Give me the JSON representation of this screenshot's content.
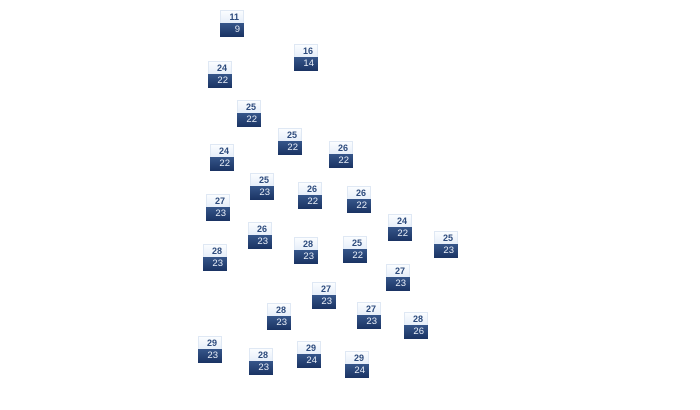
{
  "colors": {
    "marker_top": "#eef3fb",
    "marker_bottom": "#213b6c",
    "high_text": "#2c4a7c",
    "low_text": "#e8eef8"
  },
  "markers": [
    {
      "high": "11",
      "low": "9"
    },
    {
      "high": "16",
      "low": "14"
    },
    {
      "high": "24",
      "low": "22"
    },
    {
      "high": "25",
      "low": "22"
    },
    {
      "high": "25",
      "low": "22"
    },
    {
      "high": "26",
      "low": "22"
    },
    {
      "high": "24",
      "low": "22"
    },
    {
      "high": "25",
      "low": "23"
    },
    {
      "high": "26",
      "low": "22"
    },
    {
      "high": "26",
      "low": "22"
    },
    {
      "high": "27",
      "low": "23"
    },
    {
      "high": "24",
      "low": "22"
    },
    {
      "high": "26",
      "low": "23"
    },
    {
      "high": "28",
      "low": "23"
    },
    {
      "high": "25",
      "low": "22"
    },
    {
      "high": "25",
      "low": "23"
    },
    {
      "high": "28",
      "low": "23"
    },
    {
      "high": "27",
      "low": "23"
    },
    {
      "high": "27",
      "low": "23"
    },
    {
      "high": "28",
      "low": "23"
    },
    {
      "high": "27",
      "low": "23"
    },
    {
      "high": "28",
      "low": "26"
    },
    {
      "high": "29",
      "low": "23"
    },
    {
      "high": "28",
      "low": "23"
    },
    {
      "high": "29",
      "low": "24"
    },
    {
      "high": "29",
      "low": "24"
    }
  ]
}
